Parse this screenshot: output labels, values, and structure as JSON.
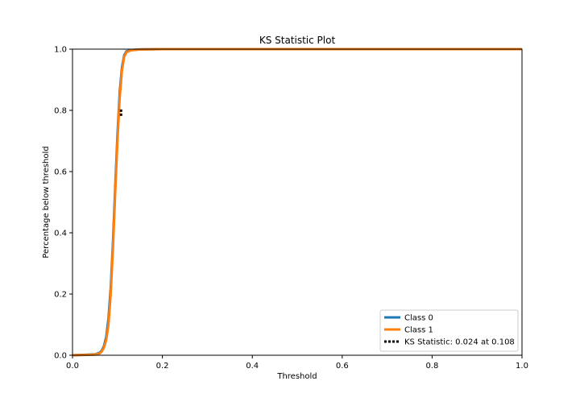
{
  "chart_data": {
    "type": "line",
    "title": "KS Statistic Plot",
    "xlabel": "Threshold",
    "ylabel": "Percentage below threshold",
    "xlim": [
      0.0,
      1.0
    ],
    "ylim": [
      0.0,
      1.0
    ],
    "x_ticks": [
      "0.0",
      "0.2",
      "0.4",
      "0.6",
      "0.8",
      "1.0"
    ],
    "y_ticks": [
      "0.0",
      "0.2",
      "0.4",
      "0.6",
      "0.8",
      "1.0"
    ],
    "grid": false,
    "legend_position": "lower-right",
    "series": [
      {
        "name": "Class 0",
        "color": "#1f77b4",
        "x": [
          0.0,
          0.05,
          0.06,
          0.065,
          0.07,
          0.075,
          0.08,
          0.085,
          0.09,
          0.095,
          0.1,
          0.105,
          0.11,
          0.115,
          0.12,
          0.13,
          0.15,
          0.2,
          1.0
        ],
        "y": [
          0.0,
          0.003,
          0.008,
          0.015,
          0.03,
          0.06,
          0.12,
          0.22,
          0.37,
          0.55,
          0.72,
          0.86,
          0.94,
          0.98,
          0.993,
          0.997,
          0.999,
          1.0,
          1.0
        ]
      },
      {
        "name": "Class 1",
        "color": "#ff7f0e",
        "x": [
          0.0,
          0.05,
          0.06,
          0.065,
          0.07,
          0.075,
          0.08,
          0.085,
          0.09,
          0.095,
          0.1,
          0.105,
          0.11,
          0.115,
          0.12,
          0.13,
          0.15,
          0.2,
          1.0
        ],
        "y": [
          0.0,
          0.002,
          0.006,
          0.012,
          0.025,
          0.05,
          0.1,
          0.2,
          0.35,
          0.53,
          0.7,
          0.84,
          0.93,
          0.975,
          0.99,
          0.996,
          0.999,
          1.0,
          1.0
        ]
      }
    ],
    "ks_statistic": {
      "label": "KS Statistic: 0.024 at 0.108",
      "x": 0.108,
      "y_low": 0.782,
      "y_high": 0.806,
      "color": "#000000"
    }
  }
}
